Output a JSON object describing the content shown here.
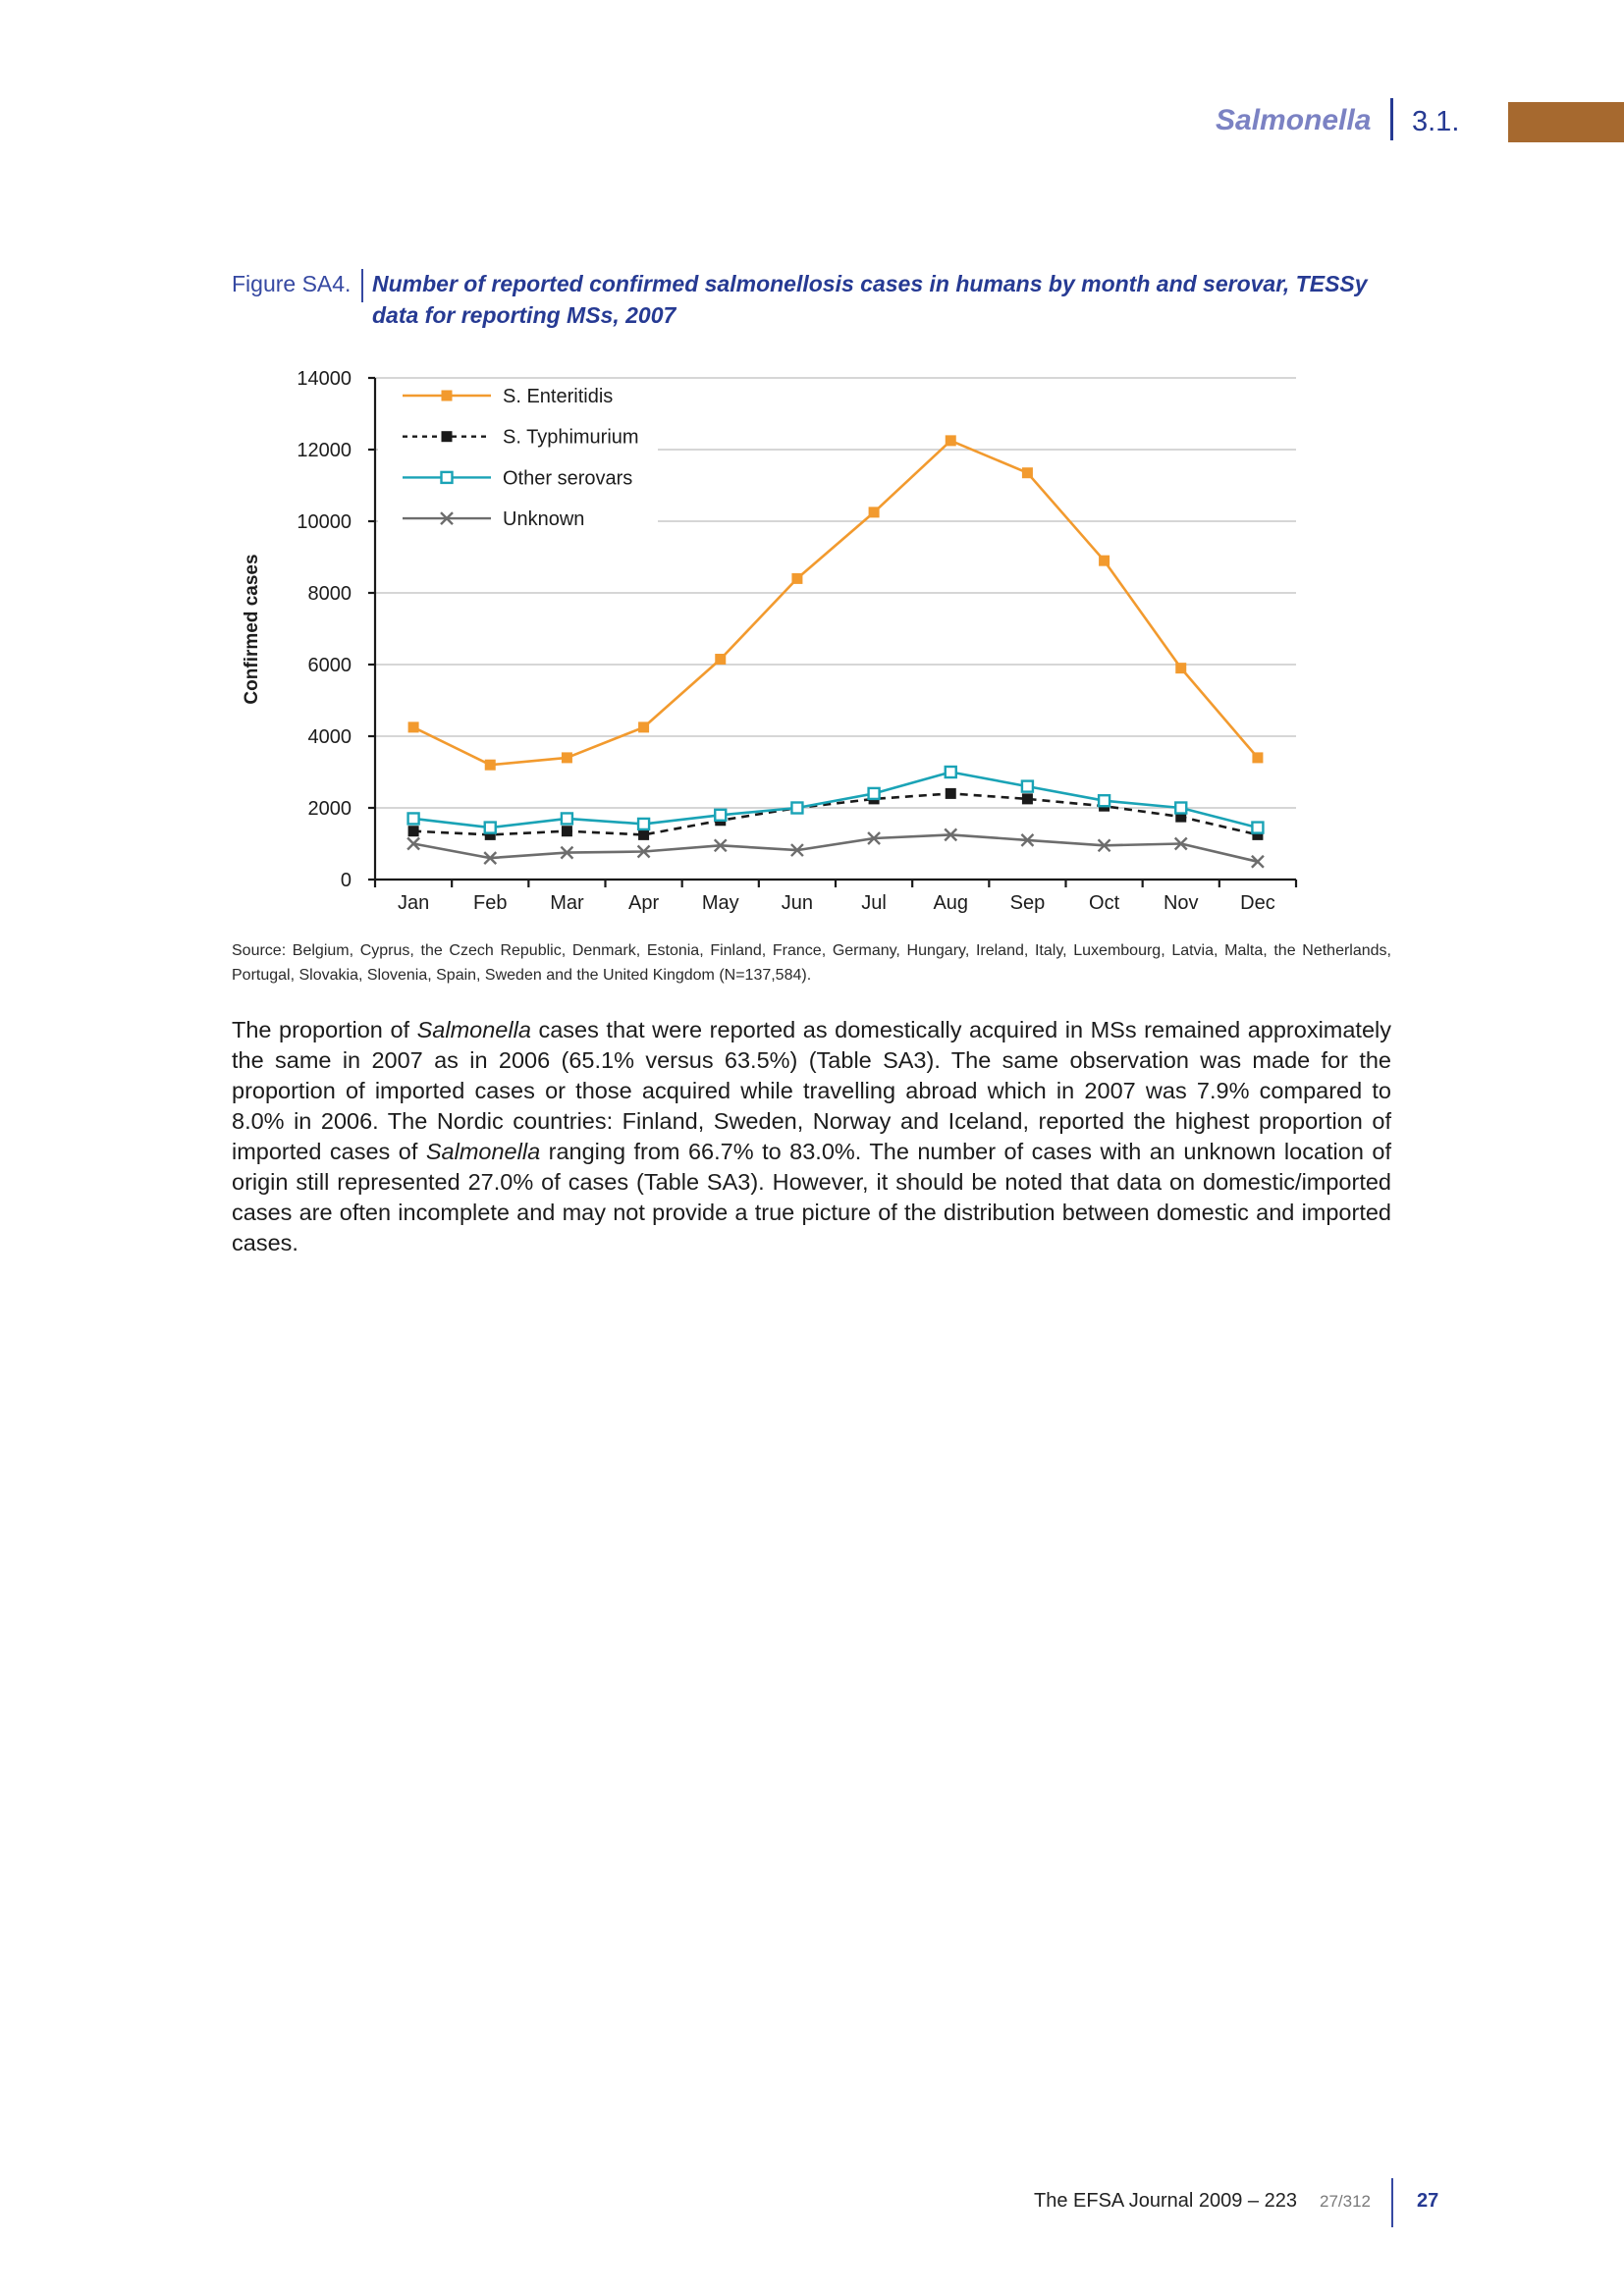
{
  "colors": {
    "section_title": "#7b82c3",
    "heading_blue": "#263a93",
    "caption_blue": "#3649a2",
    "accent_bar": "#a6692f"
  },
  "header": {
    "section": "Salmonella",
    "number": "3.1."
  },
  "figure": {
    "label": "Figure SA4.",
    "source_note": "Source: Belgium, Cyprus, the Czech Republic, Denmark, Estonia, Finland, France, Germany, Hungary, Ireland, Italy, Luxembourg, Latvia, Malta, the Netherlands, Portugal, Slovakia, Slovenia, Spain, Sweden and the United Kingdom (N=137,584)."
  },
  "chart_data": {
    "type": "line",
    "title": "Number of reported confirmed salmonellosis cases in humans by month and serovar, TESSy data for reporting MSs, 2007",
    "ylabel": "Confirmed cases",
    "categories": [
      "Jan",
      "Feb",
      "Mar",
      "Apr",
      "May",
      "Jun",
      "Jul",
      "Aug",
      "Sep",
      "Oct",
      "Nov",
      "Dec"
    ],
    "ylim": [
      0,
      14000
    ],
    "yticks": [
      0,
      2000,
      4000,
      6000,
      8000,
      10000,
      12000,
      14000
    ],
    "grid": "horizontal",
    "legend_position": "top-left",
    "series": [
      {
        "name": "S. Enteritidis",
        "color": "#f29a2e",
        "marker": "filled-square",
        "line_style": "solid",
        "values": [
          4250,
          3200,
          3400,
          4250,
          6150,
          8400,
          10250,
          12250,
          11350,
          8900,
          5900,
          3400
        ]
      },
      {
        "name": "S. Typhimurium",
        "color": "#1a1a1a",
        "marker": "filled-square",
        "line_style": "dashed",
        "values": [
          1350,
          1250,
          1350,
          1250,
          1650,
          2000,
          2250,
          2400,
          2250,
          2050,
          1750,
          1250
        ]
      },
      {
        "name": "Other serovars",
        "color": "#1aa3b6",
        "marker": "hollow-square",
        "line_style": "solid",
        "values": [
          1700,
          1450,
          1700,
          1550,
          1800,
          2000,
          2400,
          3000,
          2600,
          2200,
          2000,
          1450
        ]
      },
      {
        "name": "Unknown",
        "color": "#6d6d6d",
        "marker": "x",
        "line_style": "solid",
        "values": [
          1000,
          600,
          750,
          780,
          950,
          820,
          1150,
          1250,
          1100,
          950,
          1000,
          500
        ]
      }
    ]
  },
  "body": {
    "paragraph_segments": [
      "The proportion of ",
      "Salmonella",
      " cases that were reported as domestically acquired in MSs remained approximately the same in 2007 as in 2006 (65.1% versus 63.5%) (Table SA3). The same observation was made for the proportion of imported cases or those acquired while travelling abroad which in 2007 was 7.9% compared to 8.0% in 2006. The Nordic countries: Finland, Sweden, Norway and Iceland, reported the highest proportion of imported cases of ",
      "Salmonella",
      " ranging from 66.7% to 83.0%. The number of cases with an unknown location of origin still represented 27.0% of cases (Table SA3). However, it should be noted that data on domestic/imported cases are often incomplete and may not provide a true picture of the distribution between domestic and imported cases."
    ]
  },
  "footer": {
    "journal": "The EFSA Journal 2009 – 223",
    "page_of_total": "27/312",
    "page_number": "27"
  }
}
